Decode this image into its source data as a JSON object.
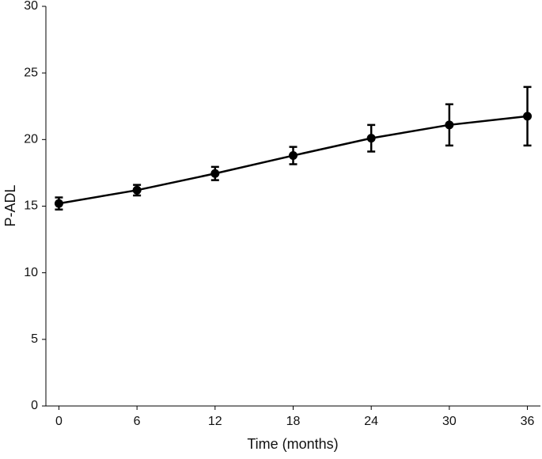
{
  "chart_data": {
    "type": "line",
    "xlabel": "Time (months)",
    "ylabel": "P-ADL",
    "x": [
      0,
      6,
      12,
      18,
      24,
      30,
      36
    ],
    "series": [
      {
        "color": "#000000",
        "values": [
          15.2,
          16.2,
          17.45,
          18.8,
          20.1,
          21.1,
          21.75
        ],
        "errors": [
          0.45,
          0.4,
          0.5,
          0.65,
          1.0,
          1.55,
          2.2
        ]
      }
    ],
    "xlim": [
      -1,
      37
    ],
    "xticks": [
      0,
      6,
      12,
      18,
      24,
      30,
      36
    ],
    "ylim": [
      0,
      30
    ],
    "yticks": [
      0,
      5,
      10,
      15,
      20,
      25,
      30
    ],
    "grid": false
  }
}
